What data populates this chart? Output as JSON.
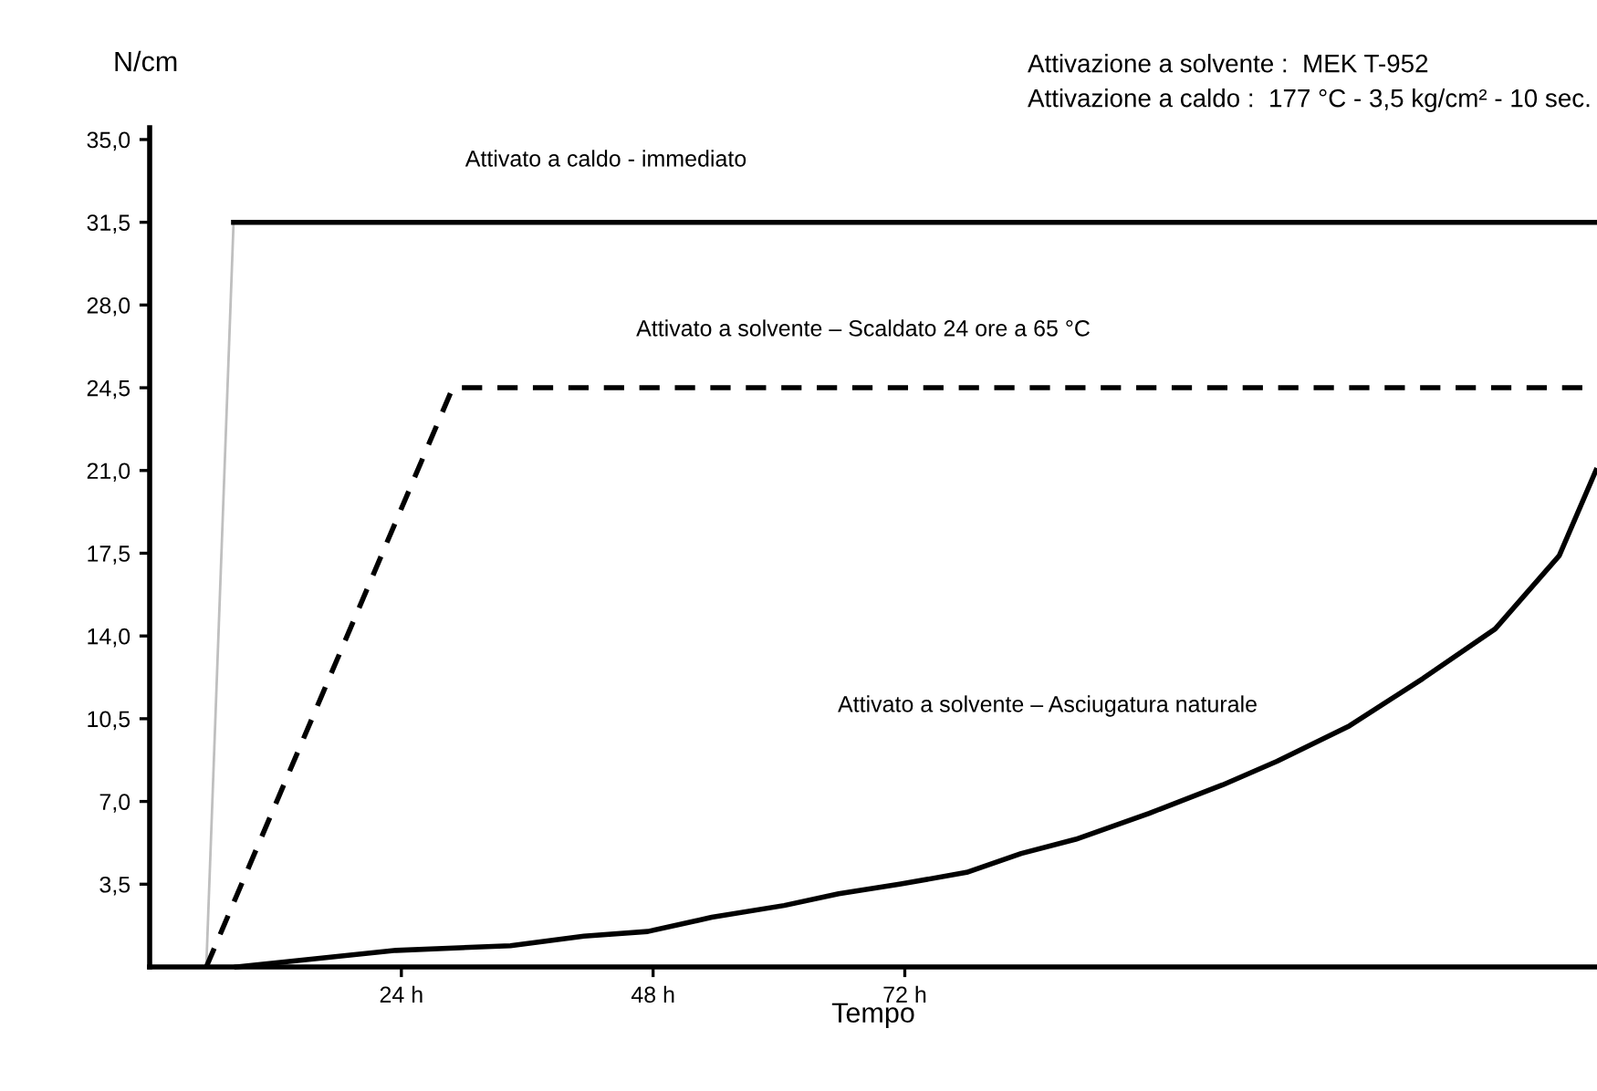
{
  "chart_data": {
    "type": "line",
    "xlabel": "Tempo",
    "ylabel": "N/cm",
    "xlim": [
      0,
      138
    ],
    "xticks": [
      {
        "value": 24,
        "label": "24 h"
      },
      {
        "value": 48,
        "label": "48 h"
      },
      {
        "value": 72,
        "label": "72 h"
      }
    ],
    "ylim": [
      0,
      35.5
    ],
    "yticks": [
      {
        "value": 3.5,
        "label": "3,5"
      },
      {
        "value": 7,
        "label": "7,0"
      },
      {
        "value": 10.5,
        "label": "10,5"
      },
      {
        "value": 14,
        "label": "14,0"
      },
      {
        "value": 17.5,
        "label": "17,5"
      },
      {
        "value": 21,
        "label": "21,0"
      },
      {
        "value": 24.5,
        "label": "24,5"
      },
      {
        "value": 28,
        "label": "28,0"
      },
      {
        "value": 31.5,
        "label": "31,5"
      },
      {
        "value": 35,
        "label": "35,0"
      }
    ],
    "grid": false,
    "legend": false,
    "series": [
      {
        "color": "#bfbfbf",
        "line_style": "solid",
        "x": [
          5.4,
          8.0
        ],
        "values": [
          0,
          31.5
        ]
      },
      {
        "color": "#000000",
        "line_style": "solid",
        "x": [
          8.0,
          138
        ],
        "values": [
          31.5,
          31.5
        ]
      },
      {
        "color": "#000000",
        "line_style": "dashed",
        "x": [
          5.4,
          28.9,
          138
        ],
        "values": [
          0,
          24.5,
          24.5
        ]
      },
      {
        "color": "#000000",
        "line_style": "solid",
        "x": [
          8.3,
          23.5,
          34.4,
          41.4,
          47.5,
          53.6,
          60.5,
          65.7,
          71.5,
          77.9,
          83.1,
          88.3,
          95.3,
          102.3,
          107.5,
          114.4,
          121.4,
          128.3,
          134.4,
          137.9
        ],
        "values": [
          0,
          0.7,
          0.9,
          1.3,
          1.5,
          2.1,
          2.6,
          3.1,
          3.5,
          4.0,
          4.8,
          5.4,
          6.5,
          7.7,
          8.7,
          10.2,
          12.2,
          14.3,
          17.4,
          21.0
        ]
      }
    ],
    "annotations": [
      "Attivato a caldo - immediato",
      "Attivato a solvente – Scaldato 24 ore a 65 °C",
      "Attivato a solvente – Asciugatura naturale",
      "Attivazione a solvente :  MEK T-952",
      "Attivazione a caldo :  177 °C - 3,5 kg/cm² - 10 sec."
    ]
  }
}
